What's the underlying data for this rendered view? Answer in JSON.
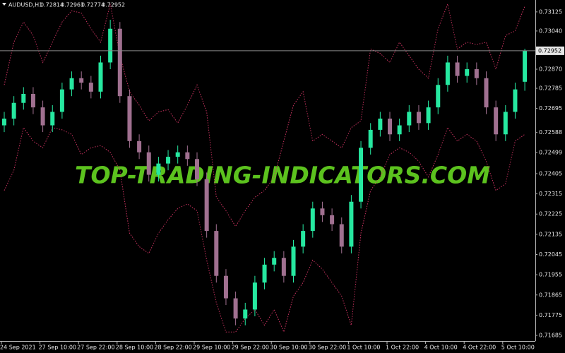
{
  "chart_data": {
    "type": "candlestick",
    "symbol": "AUDUSD,H1",
    "watermark": "TOP-TRADING-INDICATORS.COM",
    "up_color": "#26e8a0",
    "down_color": "#a07090",
    "open": [
      0.7262,
      0.7265,
      0.7272,
      0.7276,
      0.727,
      0.7262,
      0.7268,
      0.7278,
      0.7283,
      0.7281,
      0.7277,
      0.729,
      0.7305,
      0.7275,
      0.7255,
      0.725,
      0.724,
      0.7245,
      0.7248,
      0.725,
      0.7247,
      0.7238,
      0.7215,
      0.7195,
      0.7185,
      0.7176,
      0.718,
      0.7192,
      0.72,
      0.7203,
      0.7195,
      0.7208,
      0.7215,
      0.7225,
      0.7222,
      0.7218,
      0.7208,
      0.7228,
      0.7252,
      0.726,
      0.7265,
      0.7258,
      0.7262,
      0.7268,
      0.7263,
      0.727,
      0.728,
      0.729,
      0.7284,
      0.7287,
      0.7283,
      0.727,
      0.7258,
      0.7268,
      0.72814
    ],
    "high": [
      0.7268,
      0.7275,
      0.7279,
      0.7279,
      0.7273,
      0.7271,
      0.7281,
      0.7286,
      0.7286,
      0.7284,
      0.7293,
      0.7309,
      0.7308,
      0.7278,
      0.7258,
      0.7253,
      0.7248,
      0.7251,
      0.7253,
      0.7253,
      0.725,
      0.7241,
      0.7218,
      0.7198,
      0.7188,
      0.7183,
      0.7195,
      0.7203,
      0.7206,
      0.7206,
      0.7211,
      0.7218,
      0.7228,
      0.7228,
      0.7225,
      0.7221,
      0.7231,
      0.7255,
      0.7263,
      0.7268,
      0.7268,
      0.7265,
      0.7271,
      0.7271,
      0.7273,
      0.7283,
      0.7293,
      0.7293,
      0.729,
      0.729,
      0.7286,
      0.7273,
      0.7271,
      0.7281,
      0.72961
    ],
    "low": [
      0.7259,
      0.7262,
      0.7269,
      0.7267,
      0.7259,
      0.7259,
      0.7265,
      0.7275,
      0.7278,
      0.7274,
      0.7274,
      0.7287,
      0.7272,
      0.7252,
      0.7247,
      0.7237,
      0.7237,
      0.7242,
      0.7245,
      0.7244,
      0.7235,
      0.7212,
      0.7192,
      0.7182,
      0.7173,
      0.7173,
      0.7177,
      0.7189,
      0.7197,
      0.7192,
      0.7192,
      0.7205,
      0.7212,
      0.7219,
      0.7215,
      0.7205,
      0.7205,
      0.7225,
      0.7249,
      0.7257,
      0.7255,
      0.7255,
      0.7259,
      0.726,
      0.726,
      0.7267,
      0.7277,
      0.7281,
      0.7281,
      0.728,
      0.7267,
      0.7255,
      0.7255,
      0.7265,
      0.72774
    ],
    "close": [
      0.7265,
      0.7272,
      0.7276,
      0.727,
      0.7262,
      0.7268,
      0.7278,
      0.7283,
      0.7281,
      0.7277,
      0.729,
      0.7305,
      0.7275,
      0.7255,
      0.725,
      0.724,
      0.7245,
      0.7248,
      0.725,
      0.7247,
      0.7238,
      0.7215,
      0.7195,
      0.7185,
      0.7176,
      0.718,
      0.7192,
      0.72,
      0.7203,
      0.7195,
      0.7208,
      0.7215,
      0.7225,
      0.7222,
      0.7218,
      0.7208,
      0.7228,
      0.7252,
      0.726,
      0.7265,
      0.7258,
      0.7262,
      0.7268,
      0.7263,
      0.727,
      0.728,
      0.729,
      0.7284,
      0.7287,
      0.7283,
      0.727,
      0.7258,
      0.7268,
      0.7278,
      0.72952
    ],
    "bands": [
      {
        "color": "#c8325f",
        "values": [
          0.728,
          0.7299,
          0.7308,
          0.7302,
          0.729,
          0.7299,
          0.7308,
          0.7313,
          0.7312,
          0.7305,
          0.7299,
          0.7316,
          0.7293,
          0.7277,
          0.7271,
          0.7264,
          0.7268,
          0.7269,
          0.7263,
          0.7271,
          0.728,
          0.7268,
          0.723,
          0.7224,
          0.7217,
          0.7224,
          0.723,
          0.7233,
          0.7239,
          0.7255,
          0.7271,
          0.7277,
          0.7255,
          0.7258,
          0.7255,
          0.7252,
          0.7261,
          0.7264,
          0.7296,
          0.7294,
          0.729,
          0.7299,
          0.7293,
          0.7287,
          0.7283,
          0.7305,
          0.7316,
          0.7296,
          0.7299,
          0.7298,
          0.7299,
          0.7287,
          0.7302,
          0.7304,
          0.7315
        ]
      },
      {
        "color": "#c8325f",
        "values": [
          0.7233,
          0.7242,
          0.7261,
          0.7255,
          0.7252,
          0.7261,
          0.726,
          0.7258,
          0.7249,
          0.7252,
          0.7253,
          0.725,
          0.7242,
          0.7214,
          0.7208,
          0.7205,
          0.7214,
          0.722,
          0.7225,
          0.7227,
          0.7224,
          0.7202,
          0.7183,
          0.717,
          0.717,
          0.7176,
          0.718,
          0.7173,
          0.718,
          0.717,
          0.7186,
          0.7192,
          0.7202,
          0.7198,
          0.7192,
          0.7186,
          0.7173,
          0.7214,
          0.7233,
          0.7239,
          0.7249,
          0.7252,
          0.725,
          0.7246,
          0.7239,
          0.7249,
          0.7261,
          0.7255,
          0.7258,
          0.7255,
          0.7246,
          0.7233,
          0.7236,
          0.7255,
          0.7258
        ]
      }
    ],
    "ylim": [
      0.7166,
      0.73178
    ],
    "yticks": [
      {
        "value": 0.73125,
        "label": "0.73125"
      },
      {
        "value": 0.7304,
        "label": "0.73040"
      },
      {
        "value": 0.7287,
        "label": "0.72870"
      },
      {
        "value": 0.72785,
        "label": "0.72785"
      },
      {
        "value": 0.72695,
        "label": "0.72695"
      },
      {
        "value": 0.72588,
        "label": "0.72588"
      },
      {
        "value": 0.72499,
        "label": "0.72499"
      },
      {
        "value": 0.72405,
        "label": "0.72405"
      },
      {
        "value": 0.72315,
        "label": "0.72315"
      },
      {
        "value": 0.72225,
        "label": "0.72225"
      },
      {
        "value": 0.72135,
        "label": "0.72135"
      },
      {
        "value": 0.72045,
        "label": "0.72045"
      },
      {
        "value": 0.71955,
        "label": "0.71955"
      },
      {
        "value": 0.71865,
        "label": "0.71865"
      },
      {
        "value": 0.71775,
        "label": "0.71775"
      },
      {
        "value": 0.71685,
        "label": "0.71685"
      }
    ],
    "xticks": [
      {
        "value": 0,
        "label": "24 Sep 2021"
      },
      {
        "value": 4,
        "label": "27 Sep 10:00"
      },
      {
        "value": 8,
        "label": "27 Sep 22:00"
      },
      {
        "value": 12,
        "label": "28 Sep 10:00"
      },
      {
        "value": 16,
        "label": "28 Sep 22:00"
      },
      {
        "value": 20,
        "label": "29 Sep 10:00"
      },
      {
        "value": 24,
        "label": "29 Sep 22:00"
      },
      {
        "value": 28,
        "label": "30 Sep 10:00"
      },
      {
        "value": 32,
        "label": "30 Sep 22:00"
      },
      {
        "value": 36,
        "label": "1 Oct 10:00"
      },
      {
        "value": 40,
        "label": "1 Oct 22:00"
      },
      {
        "value": 44,
        "label": "4 Oct 10:00"
      },
      {
        "value": 48,
        "label": "4 Oct 22:00"
      },
      {
        "value": 52,
        "label": "5 Oct 10:00"
      }
    ]
  }
}
